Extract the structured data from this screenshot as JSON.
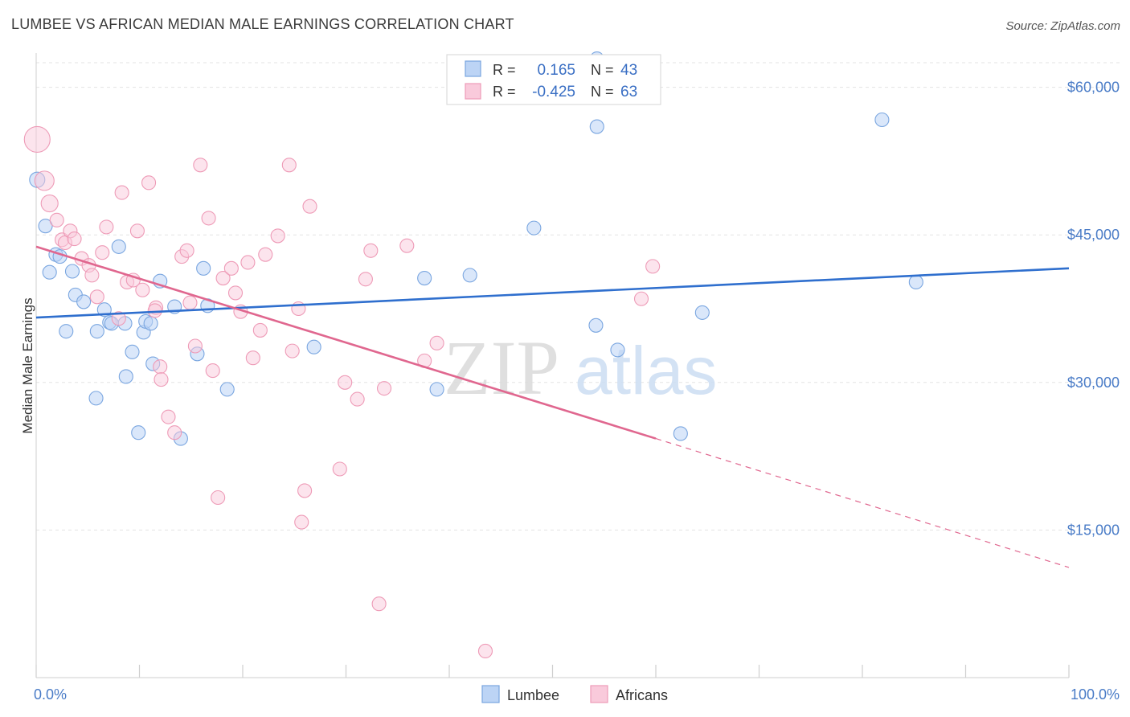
{
  "header": {
    "title": "LUMBEE VS AFRICAN MEDIAN MALE EARNINGS CORRELATION CHART",
    "source": "Source: ZipAtlas.com"
  },
  "chart_data": {
    "type": "scatter",
    "ylabel": "Median Male Earnings",
    "xlim": [
      0,
      100
    ],
    "ylim": [
      0,
      62500
    ],
    "x_tick_labels": [
      "0.0%",
      "100.0%"
    ],
    "y_ticks": [
      15000,
      30000,
      45000,
      60000
    ],
    "y_tick_labels": [
      "$15,000",
      "$30,000",
      "$45,000",
      "$60,000"
    ],
    "grid": true,
    "legend_position": "top-center",
    "watermark": {
      "zip": "ZIP",
      "atlas": "atlas"
    },
    "colors": {
      "lumbee": "#6fa3e8",
      "lumbee_line": "#2f6fce",
      "africans": "#f29bb8",
      "africans_line": "#e0678f"
    },
    "legend": [
      {
        "r_label": "R =",
        "r_value": "0.165",
        "n_label": "N =",
        "n_value": "43"
      },
      {
        "r_label": "R =",
        "r_value": "-0.425",
        "n_label": "N =",
        "n_value": "63"
      }
    ],
    "series": [
      {
        "name": "Lumbee",
        "trend": {
          "x": [
            0,
            100
          ],
          "y": [
            36600,
            41600
          ]
        },
        "points": [
          [
            0.1,
            50600
          ],
          [
            0.9,
            45900
          ],
          [
            1.3,
            41200
          ],
          [
            1.9,
            43000
          ],
          [
            2.3,
            42800
          ],
          [
            2.9,
            35200
          ],
          [
            3.5,
            41300
          ],
          [
            3.8,
            38900
          ],
          [
            4.6,
            38200
          ],
          [
            5.8,
            28400
          ],
          [
            5.9,
            35200
          ],
          [
            6.6,
            37400
          ],
          [
            7.1,
            36100
          ],
          [
            7.3,
            36000
          ],
          [
            8.0,
            43800
          ],
          [
            8.7,
            30600
          ],
          [
            8.6,
            36000
          ],
          [
            9.3,
            33100
          ],
          [
            9.9,
            24900
          ],
          [
            10.4,
            35100
          ],
          [
            10.6,
            36200
          ],
          [
            11.3,
            31900
          ],
          [
            11.1,
            36000
          ],
          [
            12.0,
            40300
          ],
          [
            13.4,
            37700
          ],
          [
            14.0,
            24300
          ],
          [
            15.6,
            32900
          ],
          [
            16.2,
            41600
          ],
          [
            16.6,
            37800
          ],
          [
            18.5,
            29300
          ],
          [
            26.9,
            33600
          ],
          [
            37.6,
            40600
          ],
          [
            38.8,
            29300
          ],
          [
            42.0,
            40900
          ],
          [
            48.2,
            45700
          ],
          [
            54.3,
            56000
          ],
          [
            54.2,
            35800
          ],
          [
            56.3,
            33300
          ],
          [
            62.4,
            24800
          ],
          [
            64.5,
            37100
          ],
          [
            81.9,
            56700
          ],
          [
            85.2,
            40200
          ],
          [
            54.3,
            62900
          ]
        ]
      },
      {
        "name": "Africans",
        "trend": {
          "x": [
            0,
            60
          ],
          "y": [
            43800,
            24300
          ]
        },
        "trend_dashed": {
          "x": [
            60,
            100
          ],
          "y": [
            24300,
            11200
          ]
        },
        "points": [
          [
            0.1,
            54700
          ],
          [
            0.8,
            50500
          ],
          [
            1.3,
            48200
          ],
          [
            2.0,
            46500
          ],
          [
            2.5,
            44500
          ],
          [
            2.8,
            44200
          ],
          [
            3.3,
            45400
          ],
          [
            3.7,
            44600
          ],
          [
            4.4,
            42600
          ],
          [
            5.1,
            41900
          ],
          [
            5.4,
            40900
          ],
          [
            5.9,
            38700
          ],
          [
            6.4,
            43200
          ],
          [
            6.8,
            45800
          ],
          [
            8.0,
            36500
          ],
          [
            8.3,
            49300
          ],
          [
            8.8,
            40200
          ],
          [
            9.4,
            40400
          ],
          [
            9.8,
            45400
          ],
          [
            10.3,
            39400
          ],
          [
            10.9,
            50300
          ],
          [
            11.6,
            37600
          ],
          [
            12.0,
            31600
          ],
          [
            12.1,
            30300
          ],
          [
            12.8,
            26500
          ],
          [
            13.4,
            24900
          ],
          [
            14.1,
            42800
          ],
          [
            14.6,
            43400
          ],
          [
            15.4,
            33700
          ],
          [
            15.9,
            52100
          ],
          [
            16.7,
            46700
          ],
          [
            17.1,
            31200
          ],
          [
            17.6,
            18300
          ],
          [
            18.1,
            40600
          ],
          [
            18.9,
            41600
          ],
          [
            19.3,
            39100
          ],
          [
            19.8,
            37200
          ],
          [
            20.5,
            42200
          ],
          [
            21.0,
            32500
          ],
          [
            21.7,
            35300
          ],
          [
            22.2,
            43000
          ],
          [
            23.4,
            44900
          ],
          [
            24.5,
            52100
          ],
          [
            24.8,
            33200
          ],
          [
            25.4,
            37500
          ],
          [
            25.7,
            15800
          ],
          [
            26.0,
            19000
          ],
          [
            26.5,
            47900
          ],
          [
            29.4,
            21200
          ],
          [
            29.9,
            30000
          ],
          [
            31.1,
            28300
          ],
          [
            31.9,
            40500
          ],
          [
            32.4,
            43400
          ],
          [
            33.2,
            7500
          ],
          [
            33.7,
            29400
          ],
          [
            35.9,
            43900
          ],
          [
            37.6,
            32200
          ],
          [
            38.8,
            34000
          ],
          [
            43.5,
            2700
          ],
          [
            58.6,
            38500
          ],
          [
            59.7,
            41800
          ],
          [
            14.9,
            38100
          ],
          [
            11.5,
            37300
          ]
        ]
      }
    ],
    "bottom_legend": [
      "Lumbee",
      "Africans"
    ]
  }
}
